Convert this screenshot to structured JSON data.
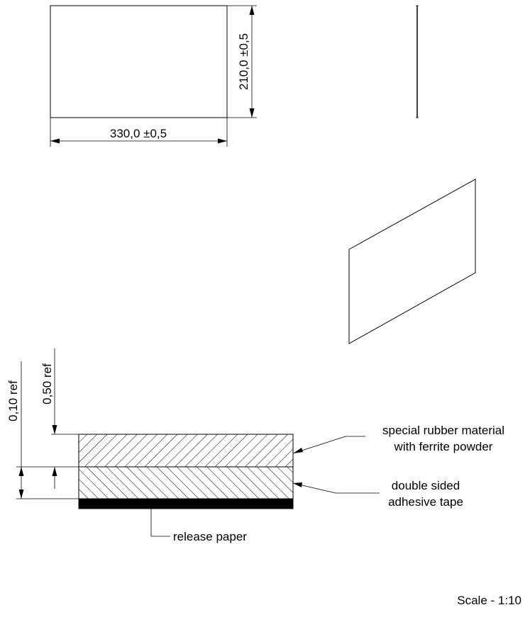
{
  "dimensions": {
    "width": "330,0 ±0,5",
    "height": "210,0 ±0,5",
    "layer_total": "0,50  ref",
    "layer_tape": "0,10  ref"
  },
  "labels": {
    "rubber_line1": "special rubber material",
    "rubber_line2": "with ferrite powder",
    "tape_line1": "double sided",
    "tape_line2": "adhesive tape",
    "release": "release paper"
  },
  "scale": "Scale - 1:10"
}
